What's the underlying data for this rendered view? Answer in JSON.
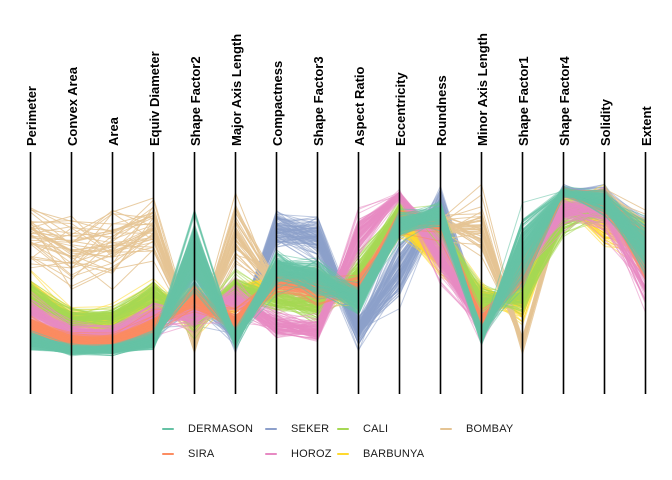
{
  "figure": {
    "background": "#ffffff",
    "axis_line_color": "#000000",
    "label_color": "#000000",
    "legend_text_color": "#1a1a1a"
  },
  "chart_data": {
    "type": "parallel-coordinates",
    "title": "",
    "grid": false,
    "legend_position": "bottom",
    "normalization": "per-axis min-max, 0 = axis bottom, 1 = axis top",
    "axes": [
      "Perimeter",
      "Convex Area",
      "Area",
      "Equiv Diameter",
      "Shape Factor2",
      "Major Axis Length",
      "Compactness",
      "Shape Factor3",
      "Aspect Ratio",
      "Eccentricity",
      "Roundness",
      "Minor Axis Length",
      "Shape Factor1",
      "Shape Factor4",
      "Solidity",
      "Extent"
    ],
    "legend_columns": [
      [
        "DERMASON",
        "SIRA"
      ],
      [
        "SEKER",
        "HOROZ"
      ],
      [
        "CALI",
        "BARBUNYA"
      ],
      [
        "BOMBAY"
      ]
    ],
    "draw_order": [
      "SEKER",
      "BARBUNYA",
      "BOMBAY",
      "CALI",
      "HOROZ",
      "SIRA",
      "DERMASON"
    ],
    "classes": {
      "DERMASON": {
        "color": "#66c2a5",
        "line_count": 150,
        "mean": [
          0.097,
          0.049,
          0.05,
          0.099,
          0.6,
          0.113,
          0.52,
          0.467,
          0.33,
          0.766,
          0.83,
          0.128,
          0.635,
          0.955,
          0.895,
          0.636
        ],
        "std": [
          0.022,
          0.013,
          0.013,
          0.023,
          0.125,
          0.022,
          0.058,
          0.062,
          0.055,
          0.045,
          0.045,
          0.021,
          0.095,
          0.016,
          0.045,
          0.09
        ]
      },
      "SIRA": {
        "color": "#fc8d62",
        "line_count": 120,
        "mean": [
          0.186,
          0.101,
          0.104,
          0.189,
          0.355,
          0.209,
          0.456,
          0.407,
          0.39,
          0.79,
          0.78,
          0.202,
          0.507,
          0.955,
          0.895,
          0.625
        ],
        "std": [
          0.025,
          0.018,
          0.018,
          0.026,
          0.045,
          0.028,
          0.048,
          0.052,
          0.05,
          0.035,
          0.042,
          0.026,
          0.04,
          0.016,
          0.045,
          0.085
        ]
      },
      "SEKER": {
        "color": "#8da0cb",
        "line_count": 95,
        "mean": [
          0.139,
          0.081,
          0.083,
          0.156,
          0.52,
          0.123,
          0.745,
          0.708,
          0.157,
          0.53,
          0.88,
          0.235,
          0.459,
          0.965,
          0.91,
          0.675
        ],
        "std": [
          0.03,
          0.02,
          0.02,
          0.032,
          0.15,
          0.03,
          0.065,
          0.085,
          0.055,
          0.12,
          0.05,
          0.032,
          0.05,
          0.018,
          0.05,
          0.09
        ]
      },
      "HOROZ": {
        "color": "#e78ac3",
        "line_count": 92,
        "mean": [
          0.271,
          0.139,
          0.142,
          0.244,
          0.258,
          0.34,
          0.188,
          0.159,
          0.707,
          0.936,
          0.6,
          0.183,
          0.546,
          0.855,
          0.86,
          0.486
        ],
        "std": [
          0.035,
          0.025,
          0.025,
          0.035,
          0.045,
          0.04,
          0.048,
          0.045,
          0.08,
          0.02,
          0.1,
          0.03,
          0.048,
          0.055,
          0.08,
          0.115
        ]
      },
      "CALI": {
        "color": "#a6d854",
        "line_count": 78,
        "mean": [
          0.365,
          0.231,
          0.235,
          0.363,
          0.235,
          0.407,
          0.338,
          0.294,
          0.5,
          0.86,
          0.71,
          0.337,
          0.349,
          0.81,
          0.88,
          0.655
        ],
        "std": [
          0.04,
          0.03,
          0.03,
          0.04,
          0.05,
          0.04,
          0.055,
          0.058,
          0.06,
          0.03,
          0.065,
          0.04,
          0.045,
          0.075,
          0.07,
          0.09
        ]
      },
      "BARBUNYA": {
        "color": "#ffd92f",
        "line_count": 95,
        "mean": [
          0.357,
          0.208,
          0.211,
          0.333,
          0.284,
          0.336,
          0.457,
          0.407,
          0.37,
          0.77,
          0.6,
          0.349,
          0.326,
          0.894,
          0.8,
          0.62
        ],
        "std": [
          0.045,
          0.035,
          0.035,
          0.045,
          0.075,
          0.045,
          0.07,
          0.075,
          0.065,
          0.045,
          0.095,
          0.045,
          0.048,
          0.035,
          0.1,
          0.095
        ]
      },
      "BOMBAY": {
        "color": "#e5c494",
        "line_count": 42,
        "mean": [
          0.726,
          0.639,
          0.654,
          0.755,
          0.102,
          0.738,
          0.396,
          0.347,
          0.4,
          0.8,
          0.76,
          0.746,
          0.083,
          0.9,
          0.93,
          0.71
        ],
        "std": [
          0.105,
          0.115,
          0.115,
          0.1,
          0.042,
          0.095,
          0.055,
          0.06,
          0.055,
          0.035,
          0.055,
          0.085,
          0.028,
          0.04,
          0.025,
          0.075
        ]
      }
    }
  }
}
